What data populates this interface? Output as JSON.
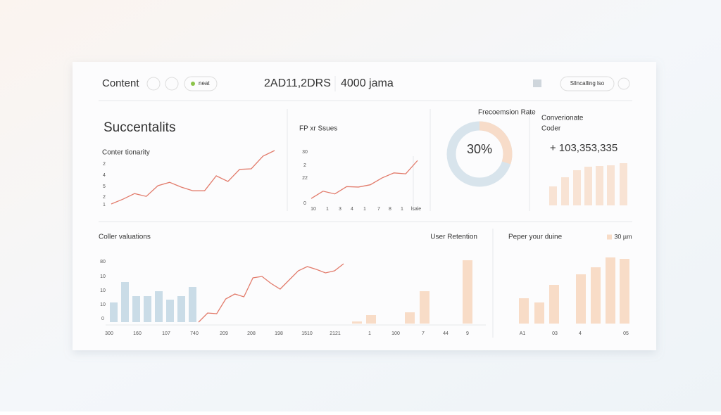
{
  "header": {
    "title": "Content",
    "tag": "neat",
    "metric_1": "2AD11,2DRS",
    "metric_2": "4000 jama",
    "action": "Sllncalling lso"
  },
  "panels": [
    {
      "type": "line",
      "title": "Succentalits",
      "subtitle": "Conter tionarity",
      "y_labels": [
        "2",
        "4",
        "5",
        "2",
        "1"
      ],
      "ylim": [
        0,
        100
      ],
      "values": [
        2.5,
        11,
        21,
        16,
        35,
        41,
        32.5,
        26,
        26,
        52.5,
        42.5,
        64,
        65,
        87.5,
        97.5
      ],
      "color": "#e27b6b"
    },
    {
      "type": "line",
      "title": "FP xr Ssues",
      "y_labels": [
        "30",
        "2",
        "22",
        "0"
      ],
      "x_labels": [
        "10",
        "1",
        "3",
        "4",
        "1",
        "7",
        "8",
        "1",
        "lsale"
      ],
      "ylim": [
        0,
        100
      ],
      "values": [
        12,
        28,
        22,
        38,
        37,
        42,
        57,
        68,
        66,
        95
      ],
      "color": "#e27b6b"
    },
    {
      "type": "donut",
      "title": "Frecoemsion Rate",
      "value": 30,
      "value_label": "30%",
      "colors": [
        "#f7dcc9",
        "#d8e4ec"
      ]
    },
    {
      "type": "bar",
      "title_lines": [
        "Converionate",
        "Coder"
      ],
      "headline": "+ 103,353,335",
      "ylim": [
        0,
        80
      ],
      "values": [
        27,
        40,
        50,
        55,
        56,
        57,
        60
      ],
      "color": "#f8e3d4"
    },
    {
      "type": "combo",
      "title": "Coller valuations",
      "y_labels": [
        "80",
        "10",
        "10",
        "10",
        "0"
      ],
      "x_labels": [
        "300",
        "160",
        "107",
        "740",
        "209",
        "208",
        "198",
        "1510",
        "2121"
      ],
      "ylim": [
        0,
        100
      ],
      "bars": [
        28,
        57,
        37,
        37,
        44,
        32,
        37,
        50
      ],
      "line": [
        0,
        13,
        12,
        33,
        40,
        36,
        63,
        65,
        55,
        47,
        60,
        73,
        79,
        75,
        70,
        73,
        83
      ],
      "bar_color": "#cadce7",
      "line_color": "#e27b6b"
    },
    {
      "type": "bar",
      "title": "User Retention",
      "x_labels": [
        "1",
        "100",
        "7",
        "44",
        "9"
      ],
      "ylim": [
        0,
        100
      ],
      "values": [
        3,
        12,
        16,
        46,
        90
      ],
      "color": "#f8dcc7"
    },
    {
      "type": "bar",
      "title": "Peper your duine",
      "legend": "30 µm",
      "x_labels": [
        "A1",
        "03",
        "4",
        "05"
      ],
      "ylim": [
        0,
        100
      ],
      "values": [
        36,
        30,
        55,
        70,
        80,
        94,
        92
      ],
      "color": "#f8dcc7"
    }
  ]
}
